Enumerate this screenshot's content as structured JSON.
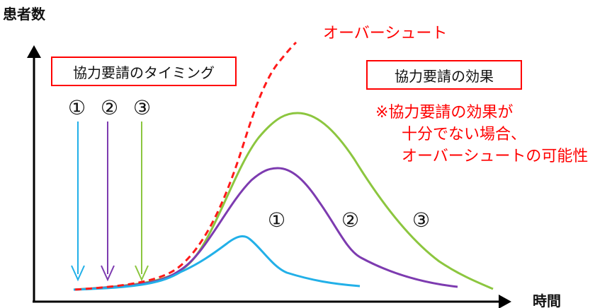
{
  "y_axis_label": "患者数",
  "x_axis_label": "時間",
  "overshoot_label": "オーバーシュート",
  "timing_box_label": "協力要請のタイミング",
  "effect_box_label": "協力要請の効果",
  "note_lines": [
    "※協力要請の効果が",
    "十分でない場合、",
    "オーバーシュートの可能性"
  ],
  "markers": [
    "①",
    "②",
    "③"
  ],
  "colors": {
    "curve_1": "#22b0e8",
    "curve_2": "#7d3bb0",
    "curve_3": "#8cc63f",
    "overshoot": "#ff1a1a",
    "box_border": "#ff0000",
    "axis": "#000000"
  }
}
